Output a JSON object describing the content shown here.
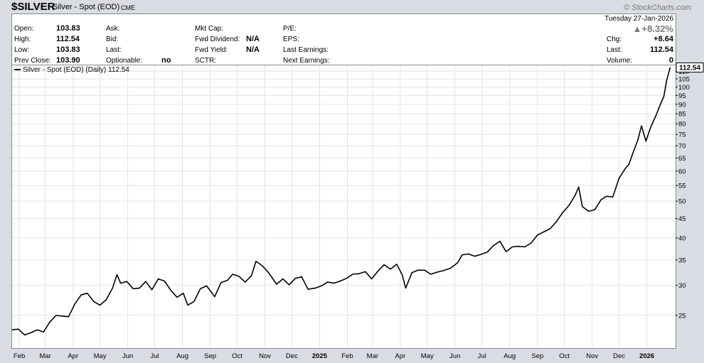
{
  "header": {
    "symbol": "$SILVER",
    "description": "Silver - Spot (EOD)",
    "exchange": "CME",
    "watermark": "© StockCharts.com"
  },
  "info": {
    "date": "Tuesday  27-Jan-2026",
    "pct_change": "▲+8.32%",
    "col1": [
      {
        "label": "Open:",
        "value": "103.83"
      },
      {
        "label": "High:",
        "value": "112.54"
      },
      {
        "label": "Low:",
        "value": "103.83"
      },
      {
        "label": "Prev Close:",
        "value": "103.90"
      }
    ],
    "col2": [
      {
        "label": "Ask:",
        "value": ""
      },
      {
        "label": "Bid:",
        "value": ""
      },
      {
        "label": "Last:",
        "value": ""
      },
      {
        "label": "Optionable:",
        "value": "no"
      }
    ],
    "col3": [
      {
        "label": "Mkt Cap:",
        "value": ""
      },
      {
        "label": "Fwd Dividend:",
        "value": "N/A"
      },
      {
        "label": "Fwd Yield:",
        "value": "N/A"
      },
      {
        "label": "SCTR:",
        "value": ""
      }
    ],
    "col4": [
      {
        "label": "P/E:"
      },
      {
        "label": "EPS:"
      },
      {
        "label": "Last Earnings:"
      },
      {
        "label": "Next Earnings:"
      }
    ],
    "col5": [
      {
        "label": "Chg:",
        "value": "+8.64"
      },
      {
        "label": "Last:",
        "value": "112.54"
      },
      {
        "label": "Volume:",
        "value": "0"
      }
    ]
  },
  "colors": {
    "line": "#000000",
    "grid": "#e4e4e4",
    "up": "#7a7a7a",
    "last_badge": "#ffffff"
  },
  "chart_data": {
    "type": "line",
    "legend": "Silver - Spot (EOD) (Daily) 112.54",
    "last_label": "112.54",
    "y_scale": "log",
    "ylim": [
      20.5,
      114
    ],
    "y_ticks": [
      25,
      30,
      35,
      40,
      45,
      50,
      55,
      60,
      65,
      70,
      75,
      80,
      85,
      90,
      95,
      100,
      105,
      110
    ],
    "x_ticks": [
      {
        "label": "Feb",
        "date": "2024-02-01"
      },
      {
        "label": "Mar",
        "date": "2024-03-01"
      },
      {
        "label": "Apr",
        "date": "2024-04-01"
      },
      {
        "label": "May",
        "date": "2024-05-01"
      },
      {
        "label": "Jun",
        "date": "2024-06-01"
      },
      {
        "label": "Jul",
        "date": "2024-07-01"
      },
      {
        "label": "Aug",
        "date": "2024-08-01"
      },
      {
        "label": "Sep",
        "date": "2024-09-01"
      },
      {
        "label": "Oct",
        "date": "2024-10-01"
      },
      {
        "label": "Nov",
        "date": "2024-11-01"
      },
      {
        "label": "Dec",
        "date": "2024-12-01"
      },
      {
        "label": "2025",
        "date": "2025-01-01",
        "bold": true
      },
      {
        "label": "Feb",
        "date": "2025-02-01"
      },
      {
        "label": "Mar",
        "date": "2025-03-01"
      },
      {
        "label": "Apr",
        "date": "2025-04-01"
      },
      {
        "label": "May",
        "date": "2025-05-01"
      },
      {
        "label": "Jun",
        "date": "2025-06-01"
      },
      {
        "label": "Jul",
        "date": "2025-07-01"
      },
      {
        "label": "Aug",
        "date": "2025-08-01"
      },
      {
        "label": "Sep",
        "date": "2025-09-01"
      },
      {
        "label": "Oct",
        "date": "2025-10-01"
      },
      {
        "label": "Nov",
        "date": "2025-11-01"
      },
      {
        "label": "Dec",
        "date": "2025-12-01"
      },
      {
        "label": "2026",
        "date": "2026-01-01",
        "bold": true
      }
    ],
    "x_range": [
      "2024-01-24",
      "2026-02-02"
    ],
    "points": [
      [
        "2024-01-24",
        22.9
      ],
      [
        "2024-01-31",
        23.0
      ],
      [
        "2024-02-07",
        22.2
      ],
      [
        "2024-02-14",
        22.5
      ],
      [
        "2024-02-21",
        22.9
      ],
      [
        "2024-02-28",
        22.6
      ],
      [
        "2024-03-06",
        24.0
      ],
      [
        "2024-03-13",
        25.0
      ],
      [
        "2024-03-20",
        24.9
      ],
      [
        "2024-03-27",
        24.8
      ],
      [
        "2024-04-03",
        26.8
      ],
      [
        "2024-04-10",
        28.3
      ],
      [
        "2024-04-17",
        28.6
      ],
      [
        "2024-04-24",
        27.2
      ],
      [
        "2024-05-01",
        26.6
      ],
      [
        "2024-05-08",
        27.5
      ],
      [
        "2024-05-15",
        29.5
      ],
      [
        "2024-05-20",
        32.0
      ],
      [
        "2024-05-24",
        30.4
      ],
      [
        "2024-05-31",
        30.7
      ],
      [
        "2024-06-07",
        29.4
      ],
      [
        "2024-06-14",
        29.5
      ],
      [
        "2024-06-21",
        30.7
      ],
      [
        "2024-06-28",
        29.2
      ],
      [
        "2024-07-05",
        31.2
      ],
      [
        "2024-07-12",
        30.8
      ],
      [
        "2024-07-19",
        29.1
      ],
      [
        "2024-07-26",
        27.9
      ],
      [
        "2024-08-02",
        28.6
      ],
      [
        "2024-08-07",
        26.6
      ],
      [
        "2024-08-14",
        27.2
      ],
      [
        "2024-08-21",
        29.4
      ],
      [
        "2024-08-28",
        29.9
      ],
      [
        "2024-09-06",
        28.0
      ],
      [
        "2024-09-13",
        30.5
      ],
      [
        "2024-09-20",
        30.9
      ],
      [
        "2024-09-26",
        32.1
      ],
      [
        "2024-10-03",
        31.7
      ],
      [
        "2024-10-10",
        30.6
      ],
      [
        "2024-10-17",
        31.8
      ],
      [
        "2024-10-22",
        34.7
      ],
      [
        "2024-10-29",
        33.8
      ],
      [
        "2024-11-05",
        32.4
      ],
      [
        "2024-11-14",
        30.2
      ],
      [
        "2024-11-21",
        31.2
      ],
      [
        "2024-11-28",
        30.1
      ],
      [
        "2024-12-05",
        31.3
      ],
      [
        "2024-12-12",
        31.6
      ],
      [
        "2024-12-19",
        29.3
      ],
      [
        "2024-12-27",
        29.5
      ],
      [
        "2025-01-03",
        29.9
      ],
      [
        "2025-01-10",
        30.6
      ],
      [
        "2025-01-17",
        30.4
      ],
      [
        "2025-01-24",
        30.8
      ],
      [
        "2025-01-31",
        31.3
      ],
      [
        "2025-02-07",
        32.1
      ],
      [
        "2025-02-14",
        32.2
      ],
      [
        "2025-02-21",
        32.6
      ],
      [
        "2025-02-28",
        31.2
      ],
      [
        "2025-03-07",
        32.7
      ],
      [
        "2025-03-14",
        34.0
      ],
      [
        "2025-03-21",
        33.1
      ],
      [
        "2025-03-28",
        34.1
      ],
      [
        "2025-04-03",
        32.0
      ],
      [
        "2025-04-07",
        29.5
      ],
      [
        "2025-04-14",
        32.4
      ],
      [
        "2025-04-21",
        32.9
      ],
      [
        "2025-04-28",
        32.9
      ],
      [
        "2025-05-05",
        32.1
      ],
      [
        "2025-05-12",
        32.5
      ],
      [
        "2025-05-19",
        32.8
      ],
      [
        "2025-05-27",
        33.3
      ],
      [
        "2025-06-04",
        34.4
      ],
      [
        "2025-06-09",
        36.1
      ],
      [
        "2025-06-16",
        36.3
      ],
      [
        "2025-06-23",
        35.8
      ],
      [
        "2025-06-30",
        36.2
      ],
      [
        "2025-07-07",
        36.7
      ],
      [
        "2025-07-14",
        38.2
      ],
      [
        "2025-07-21",
        39.2
      ],
      [
        "2025-07-28",
        36.8
      ],
      [
        "2025-08-04",
        37.9
      ],
      [
        "2025-08-11",
        38.0
      ],
      [
        "2025-08-18",
        37.9
      ],
      [
        "2025-08-25",
        38.8
      ],
      [
        "2025-09-01",
        40.7
      ],
      [
        "2025-09-08",
        41.5
      ],
      [
        "2025-09-15",
        42.3
      ],
      [
        "2025-09-22",
        44.1
      ],
      [
        "2025-09-29",
        46.6
      ],
      [
        "2025-10-06",
        48.7
      ],
      [
        "2025-10-13",
        51.8
      ],
      [
        "2025-10-17",
        54.5
      ],
      [
        "2025-10-21",
        48.4
      ],
      [
        "2025-10-28",
        47.0
      ],
      [
        "2025-11-04",
        47.5
      ],
      [
        "2025-11-11",
        50.5
      ],
      [
        "2025-11-17",
        51.5
      ],
      [
        "2025-11-24",
        51.3
      ],
      [
        "2025-12-01",
        57.5
      ],
      [
        "2025-12-08",
        61.0
      ],
      [
        "2025-12-12",
        62.5
      ],
      [
        "2025-12-17",
        67.5
      ],
      [
        "2025-12-22",
        72.5
      ],
      [
        "2025-12-26",
        79.0
      ],
      [
        "2025-12-31",
        72.0
      ],
      [
        "2026-01-05",
        78.0
      ],
      [
        "2026-01-12",
        85.0
      ],
      [
        "2026-01-16",
        90.0
      ],
      [
        "2026-01-20",
        94.5
      ],
      [
        "2026-01-23",
        103.9
      ],
      [
        "2026-01-27",
        112.54
      ]
    ]
  }
}
